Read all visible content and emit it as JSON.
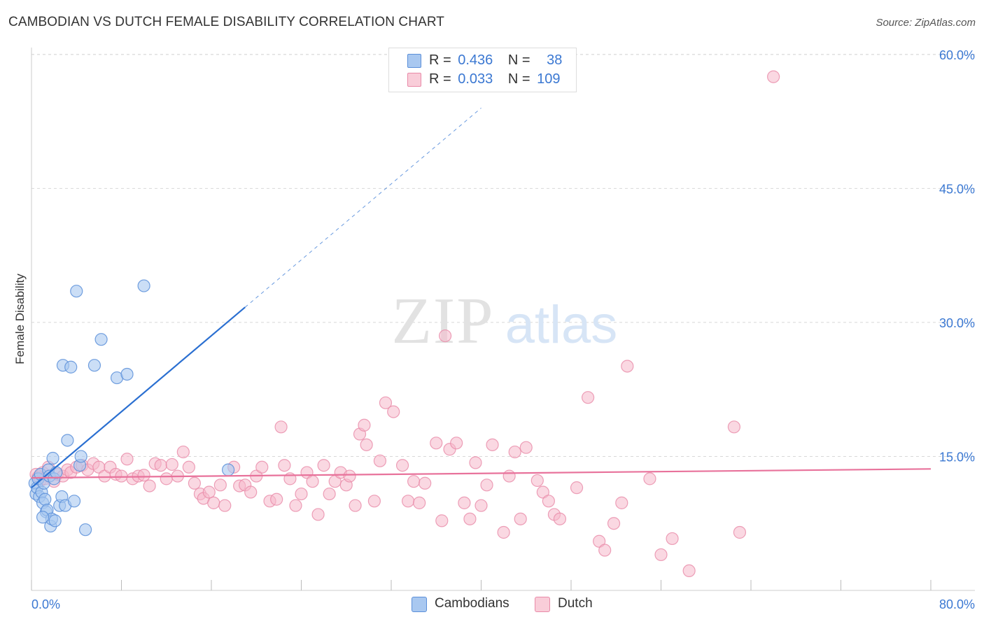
{
  "title": "CAMBODIAN VS DUTCH FEMALE DISABILITY CORRELATION CHART",
  "source": "Source: ZipAtlas.com",
  "watermark": {
    "zip": "ZIP",
    "atlas": "atlas"
  },
  "legend": {
    "rows": [
      {
        "r_label": "R =",
        "r_value": "0.436",
        "n_label": "N =",
        "n_value": "38"
      },
      {
        "r_label": "R =",
        "r_value": "0.033",
        "n_label": "N =",
        "n_value": "109"
      }
    ]
  },
  "bottom_legend": {
    "cambodians": "Cambodians",
    "dutch": "Dutch"
  },
  "colors": {
    "cambodian_fill": "#a9c8f0",
    "cambodian_stroke": "#5b8fd9",
    "cambodian_line": "#2a6fd1",
    "dutch_fill": "#f5b8cb",
    "dutch_stroke": "#e98aa8",
    "dutch_line": "#e8729b",
    "tick_label": "#3b78d2",
    "grid": "#d8d8d8"
  },
  "chart_data": {
    "type": "scatter",
    "title": "CAMBODIAN VS DUTCH FEMALE DISABILITY CORRELATION CHART",
    "xlabel": "",
    "ylabel": "Female Disability",
    "xlim": [
      0,
      80
    ],
    "ylim": [
      0,
      60
    ],
    "x_tick_labels": [
      "0.0%",
      "80.0%"
    ],
    "y_ticks": [
      15,
      30,
      45,
      60
    ],
    "y_tick_labels": [
      "15.0%",
      "30.0%",
      "45.0%",
      "60.0%"
    ],
    "grid": true,
    "series": [
      {
        "name": "Cambodians",
        "r": 0.436,
        "n": 38,
        "trend": {
          "x0": 0.0,
          "y0": 11.5,
          "x1": 19.0,
          "y1": 31.7,
          "dashed_to_x": 40.0,
          "dashed_to_y": 54.0
        },
        "points": [
          [
            0.3,
            12.0
          ],
          [
            0.4,
            10.8
          ],
          [
            0.5,
            11.5
          ],
          [
            0.6,
            12.5
          ],
          [
            0.7,
            10.5
          ],
          [
            0.8,
            13.0
          ],
          [
            0.9,
            11.0
          ],
          [
            1.0,
            9.8
          ],
          [
            1.1,
            12.0
          ],
          [
            1.2,
            10.2
          ],
          [
            1.3,
            8.8
          ],
          [
            1.4,
            9.0
          ],
          [
            1.5,
            13.5
          ],
          [
            1.6,
            12.8
          ],
          [
            1.7,
            7.2
          ],
          [
            1.8,
            8.0
          ],
          [
            1.9,
            14.8
          ],
          [
            2.0,
            12.5
          ],
          [
            2.1,
            7.8
          ],
          [
            2.2,
            13.2
          ],
          [
            2.5,
            9.5
          ],
          [
            2.7,
            10.5
          ],
          [
            2.8,
            25.2
          ],
          [
            3.0,
            9.5
          ],
          [
            3.2,
            16.8
          ],
          [
            3.5,
            25.0
          ],
          [
            3.8,
            10.0
          ],
          [
            4.0,
            33.5
          ],
          [
            4.3,
            14.0
          ],
          [
            4.4,
            15.0
          ],
          [
            4.8,
            6.8
          ],
          [
            5.6,
            25.2
          ],
          [
            6.2,
            28.1
          ],
          [
            7.6,
            23.8
          ],
          [
            8.5,
            24.2
          ],
          [
            10.0,
            34.1
          ],
          [
            1.0,
            8.2
          ],
          [
            17.5,
            13.5
          ]
        ]
      },
      {
        "name": "Dutch",
        "r": 0.033,
        "n": 109,
        "trend": {
          "x0": 0.0,
          "y0": 12.6,
          "x1": 80.0,
          "y1": 13.6
        },
        "points": [
          [
            0.4,
            13.0
          ],
          [
            0.6,
            12.7
          ],
          [
            0.8,
            12.3
          ],
          [
            1.0,
            13.2
          ],
          [
            1.2,
            12.5
          ],
          [
            1.5,
            13.8
          ],
          [
            2.0,
            12.2
          ],
          [
            2.3,
            13.0
          ],
          [
            2.8,
            12.8
          ],
          [
            3.2,
            13.5
          ],
          [
            3.5,
            13.2
          ],
          [
            4.0,
            13.8
          ],
          [
            4.5,
            14.0
          ],
          [
            5.0,
            13.5
          ],
          [
            5.5,
            14.2
          ],
          [
            6.0,
            13.8
          ],
          [
            6.5,
            12.8
          ],
          [
            7.0,
            13.8
          ],
          [
            7.5,
            13.0
          ],
          [
            8.0,
            12.8
          ],
          [
            8.5,
            14.7
          ],
          [
            9.0,
            12.5
          ],
          [
            9.5,
            12.8
          ],
          [
            10.0,
            12.9
          ],
          [
            10.5,
            11.7
          ],
          [
            11.0,
            14.2
          ],
          [
            11.5,
            14.0
          ],
          [
            12.0,
            12.5
          ],
          [
            12.5,
            14.1
          ],
          [
            13.0,
            12.8
          ],
          [
            13.5,
            15.5
          ],
          [
            14.0,
            13.8
          ],
          [
            14.5,
            12.0
          ],
          [
            15.0,
            10.8
          ],
          [
            15.3,
            10.3
          ],
          [
            15.8,
            11.0
          ],
          [
            16.2,
            9.8
          ],
          [
            16.8,
            11.8
          ],
          [
            17.2,
            9.5
          ],
          [
            18.0,
            13.8
          ],
          [
            18.5,
            11.7
          ],
          [
            19.0,
            11.8
          ],
          [
            19.5,
            11.0
          ],
          [
            20.0,
            12.8
          ],
          [
            20.5,
            13.8
          ],
          [
            21.2,
            10.0
          ],
          [
            21.8,
            10.2
          ],
          [
            22.2,
            18.3
          ],
          [
            22.5,
            14.0
          ],
          [
            23.0,
            12.5
          ],
          [
            23.5,
            9.5
          ],
          [
            24.0,
            10.8
          ],
          [
            24.5,
            13.2
          ],
          [
            25.0,
            12.2
          ],
          [
            25.5,
            8.5
          ],
          [
            26.0,
            14.0
          ],
          [
            26.5,
            10.8
          ],
          [
            27.0,
            12.2
          ],
          [
            27.5,
            13.2
          ],
          [
            28.0,
            11.8
          ],
          [
            28.3,
            12.8
          ],
          [
            28.8,
            9.5
          ],
          [
            29.2,
            17.5
          ],
          [
            29.6,
            18.5
          ],
          [
            29.8,
            16.3
          ],
          [
            30.5,
            10.0
          ],
          [
            31.0,
            14.5
          ],
          [
            31.5,
            21.0
          ],
          [
            32.2,
            20.0
          ],
          [
            33.0,
            14.0
          ],
          [
            33.5,
            10.0
          ],
          [
            34.0,
            12.2
          ],
          [
            34.5,
            9.8
          ],
          [
            35.0,
            12.0
          ],
          [
            36.0,
            16.5
          ],
          [
            36.5,
            7.8
          ],
          [
            36.8,
            28.5
          ],
          [
            37.2,
            15.8
          ],
          [
            37.8,
            16.5
          ],
          [
            38.5,
            9.8
          ],
          [
            39.0,
            8.0
          ],
          [
            39.5,
            14.3
          ],
          [
            40.0,
            9.5
          ],
          [
            40.5,
            11.8
          ],
          [
            41.0,
            16.3
          ],
          [
            42.0,
            6.5
          ],
          [
            42.5,
            12.8
          ],
          [
            43.0,
            15.5
          ],
          [
            43.5,
            8.0
          ],
          [
            44.0,
            16.0
          ],
          [
            45.0,
            12.3
          ],
          [
            45.5,
            11.0
          ],
          [
            46.0,
            10.0
          ],
          [
            46.5,
            8.5
          ],
          [
            47.0,
            8.0
          ],
          [
            48.5,
            11.5
          ],
          [
            49.5,
            21.6
          ],
          [
            50.5,
            5.5
          ],
          [
            51.0,
            4.5
          ],
          [
            51.8,
            7.5
          ],
          [
            52.5,
            9.8
          ],
          [
            53.0,
            25.1
          ],
          [
            55.0,
            12.5
          ],
          [
            56.0,
            4.0
          ],
          [
            57.0,
            5.8
          ],
          [
            58.5,
            2.2
          ],
          [
            62.5,
            18.3
          ],
          [
            63.0,
            6.5
          ],
          [
            66.0,
            57.5
          ]
        ]
      }
    ]
  }
}
